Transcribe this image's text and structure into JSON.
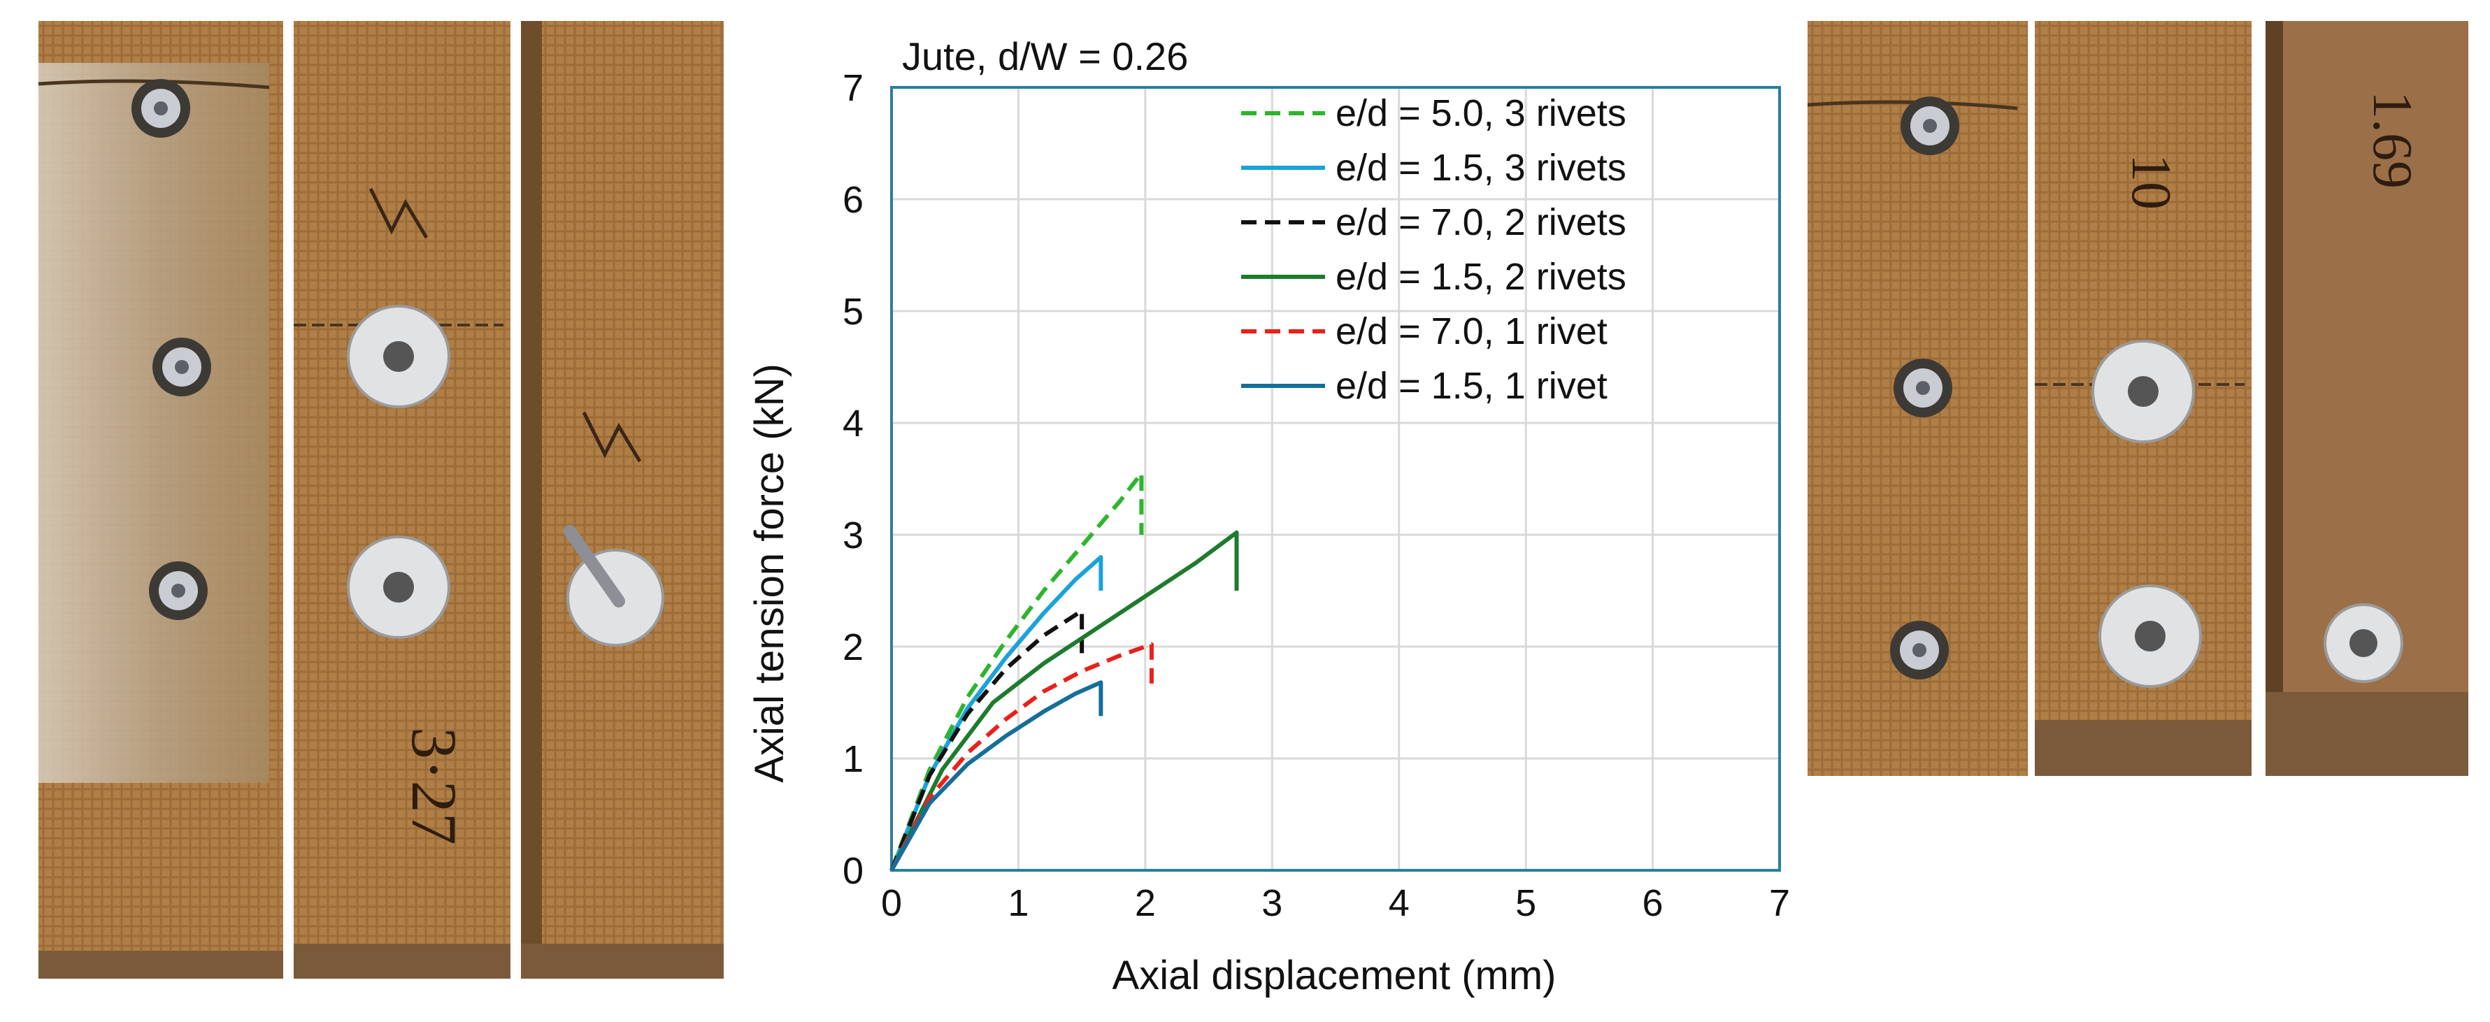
{
  "chart_data": {
    "type": "line",
    "title": "Jute, d/W = 0.26",
    "xlabel": "Axial displacement (mm)",
    "ylabel": "Axial tension force (kN)",
    "xlim": [
      0,
      7
    ],
    "ylim": [
      0,
      7
    ],
    "xticks": [
      "0",
      "1",
      "2",
      "3",
      "4",
      "5",
      "6",
      "7"
    ],
    "yticks": [
      "0",
      "1",
      "2",
      "3",
      "4",
      "5",
      "6",
      "7"
    ],
    "grid": true,
    "legend_position": "top-right",
    "series": [
      {
        "name": "e/d = 5.0, 3 rivets",
        "color": "#2db52d",
        "dash": "dashed",
        "x": [
          0,
          0.3,
          0.6,
          0.9,
          1.2,
          1.5,
          1.8,
          1.97,
          1.97
        ],
        "y": [
          0,
          0.9,
          1.55,
          2.05,
          2.5,
          2.9,
          3.3,
          3.55,
          3.0
        ]
      },
      {
        "name": "e/d = 1.5, 3 rivets",
        "color": "#1aa3d9",
        "dash": "solid",
        "x": [
          0,
          0.3,
          0.6,
          0.9,
          1.2,
          1.45,
          1.65,
          1.65
        ],
        "y": [
          0,
          0.85,
          1.45,
          1.9,
          2.3,
          2.6,
          2.8,
          2.5
        ]
      },
      {
        "name": "e/d = 7.0, 2 rivets",
        "color": "#111111",
        "dash": "dashed",
        "x": [
          0,
          0.3,
          0.6,
          0.9,
          1.2,
          1.5,
          1.5
        ],
        "y": [
          0,
          0.85,
          1.4,
          1.8,
          2.1,
          2.32,
          1.9
        ]
      },
      {
        "name": "e/d = 1.5, 2 rivets",
        "color": "#1e7b2e",
        "dash": "solid",
        "x": [
          0,
          0.4,
          0.8,
          1.2,
          1.6,
          2.0,
          2.4,
          2.72,
          2.72
        ],
        "y": [
          0,
          0.9,
          1.5,
          1.85,
          2.15,
          2.45,
          2.75,
          3.02,
          2.5
        ]
      },
      {
        "name": "e/d = 7.0, 1 rivet",
        "color": "#e8211b",
        "dash": "dashed",
        "x": [
          0,
          0.3,
          0.6,
          0.9,
          1.2,
          1.5,
          1.8,
          2.05,
          2.05
        ],
        "y": [
          0,
          0.65,
          1.05,
          1.35,
          1.6,
          1.78,
          1.92,
          2.02,
          1.65
        ]
      },
      {
        "name": "e/d = 1.5, 1 rivet",
        "color": "#156e9a",
        "dash": "solid",
        "x": [
          0,
          0.3,
          0.6,
          0.9,
          1.2,
          1.45,
          1.65,
          1.65
        ],
        "y": [
          0,
          0.6,
          0.95,
          1.2,
          1.42,
          1.58,
          1.68,
          1.38
        ]
      }
    ]
  },
  "photos": {
    "left": [
      {
        "handwriting": ""
      },
      {
        "handwriting": "3·27"
      },
      {
        "handwriting": ""
      }
    ],
    "right": [
      {
        "handwriting": ""
      },
      {
        "handwriting": "10"
      },
      {
        "handwriting": "1.69"
      }
    ]
  }
}
